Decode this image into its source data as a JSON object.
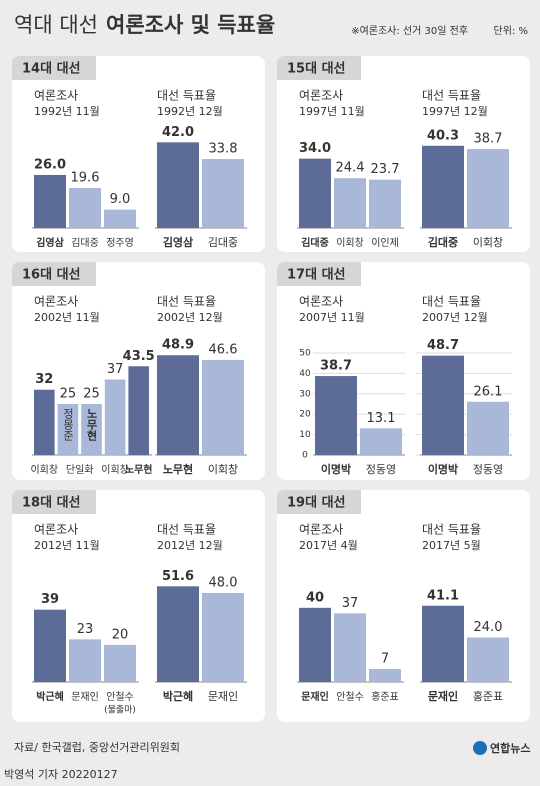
{
  "header": {
    "title_light": "역대 대선",
    "title_bold": "여론조사 및 득표율",
    "note": "※여론조사: 선거 30일 전후",
    "unit": "단위: %"
  },
  "panels": [
    {
      "label": "14대 대선"
    },
    {
      "label": "15대 대선"
    },
    {
      "label": "16대 대선"
    },
    {
      "label": "17대 대선"
    },
    {
      "label": "18대 대선"
    },
    {
      "label": "19대 대선"
    }
  ],
  "chart_data": [
    {
      "type": "bar",
      "title": "여론조사",
      "subtitle": "1992년 11월",
      "categories": [
        "김영삼",
        "김대중",
        "정주영"
      ],
      "values": [
        26,
        19.6,
        9
      ],
      "value_labels": [
        "26.0",
        "19.6",
        "9.0"
      ],
      "colors": [
        "#5d6c97",
        "#a9b8d9",
        "#a9b8d9"
      ],
      "bold": [
        true,
        false,
        false
      ],
      "ylim": [
        0,
        50
      ]
    },
    {
      "type": "bar",
      "title": "대선 득표율",
      "subtitle": "1992년 12월",
      "categories": [
        "김영삼",
        "김대중"
      ],
      "values": [
        42,
        33.8
      ],
      "value_labels": [
        "42.0",
        "33.8"
      ],
      "colors": [
        "#5d6c97",
        "#a9b8d9"
      ],
      "bold": [
        true,
        false
      ],
      "ylim": [
        0,
        50
      ]
    },
    {
      "type": "bar",
      "title": "여론조사",
      "subtitle": "1997년 11월",
      "categories": [
        "김대중",
        "이회창",
        "이인제"
      ],
      "values": [
        34,
        24.4,
        23.7
      ],
      "value_labels": [
        "34.0",
        "24.4",
        "23.7"
      ],
      "colors": [
        "#5d6c97",
        "#a9b8d9",
        "#a9b8d9"
      ],
      "bold": [
        true,
        false,
        false
      ],
      "ylim": [
        0,
        50
      ]
    },
    {
      "type": "bar",
      "title": "대선 득표율",
      "subtitle": "1997년 12월",
      "categories": [
        "김대중",
        "이회창"
      ],
      "values": [
        40.3,
        38.7
      ],
      "colors": [
        "#5d6c97",
        "#a9b8d9"
      ],
      "bold": [
        true,
        false
      ],
      "ylim": [
        0,
        50
      ]
    },
    {
      "type": "bar",
      "title": "여론조사",
      "subtitle": "2002년 11월",
      "categories": [
        "이회창",
        "정몽준",
        "노무현",
        "이회창",
        "노무현"
      ],
      "values": [
        32,
        25,
        25,
        37,
        43.5
      ],
      "colors": [
        "#5d6c97",
        "#a9b8d9",
        "#a9b8d9",
        "#a9b8d9",
        "#5d6c97"
      ],
      "bold": [
        false,
        false,
        true,
        false,
        true
      ],
      "in_bar": [
        false,
        true,
        true,
        false,
        false
      ],
      "group_label": "단일화",
      "ylim": [
        0,
        50
      ]
    },
    {
      "type": "bar",
      "title": "대선 득표율",
      "subtitle": "2002년 12월",
      "categories": [
        "노무현",
        "이회창"
      ],
      "values": [
        48.9,
        46.6
      ],
      "colors": [
        "#5d6c97",
        "#a9b8d9"
      ],
      "bold": [
        true,
        false
      ],
      "ylim": [
        0,
        50
      ]
    },
    {
      "type": "bar",
      "title": "여론조사",
      "subtitle": "2007년 11월",
      "categories": [
        "이명박",
        "정동영"
      ],
      "values": [
        38.7,
        13.1
      ],
      "colors": [
        "#5d6c97",
        "#a9b8d9"
      ],
      "bold": [
        true,
        false
      ],
      "ylim": [
        0,
        50
      ],
      "yticks": [
        0,
        10,
        20,
        30,
        40,
        50
      ],
      "grid": true,
      "show_tick_labels": true
    },
    {
      "type": "bar",
      "title": "대선 득표율",
      "subtitle": "2007년 12월",
      "categories": [
        "이명박",
        "정동영"
      ],
      "values": [
        48.7,
        26.1
      ],
      "colors": [
        "#5d6c97",
        "#a9b8d9"
      ],
      "bold": [
        true,
        false
      ],
      "ylim": [
        0,
        50
      ],
      "yticks": [
        0,
        10,
        20,
        30,
        40,
        50
      ],
      "grid": true,
      "show_tick_labels": false
    },
    {
      "type": "bar",
      "title": "여론조사",
      "subtitle": "2012년 11월",
      "categories": [
        "박근혜",
        "문재인",
        "안철수"
      ],
      "category_notes": [
        null,
        null,
        "(불출마)"
      ],
      "values": [
        39,
        23,
        20
      ],
      "colors": [
        "#5d6c97",
        "#a9b8d9",
        "#a9b8d9"
      ],
      "bold": [
        true,
        false,
        false
      ],
      "ylim": [
        0,
        55
      ]
    },
    {
      "type": "bar",
      "title": "대선 득표율",
      "subtitle": "2012년 12월",
      "categories": [
        "박근혜",
        "문재인"
      ],
      "values": [
        51.6,
        48
      ],
      "value_labels": [
        "51.6",
        "48.0"
      ],
      "colors": [
        "#5d6c97",
        "#a9b8d9"
      ],
      "bold": [
        true,
        false
      ],
      "ylim": [
        0,
        55
      ]
    },
    {
      "type": "bar",
      "title": "여론조사",
      "subtitle": "2017년 4월",
      "categories": [
        "문재인",
        "안철수",
        "홍준표"
      ],
      "values": [
        40,
        37,
        7
      ],
      "colors": [
        "#5d6c97",
        "#a9b8d9",
        "#a9b8d9"
      ],
      "bold": [
        true,
        false,
        false
      ],
      "ylim": [
        0,
        55
      ]
    },
    {
      "type": "bar",
      "title": "대선 득표율",
      "subtitle": "2017년 5월",
      "categories": [
        "문재인",
        "홍준표"
      ],
      "values": [
        41.1,
        24
      ],
      "value_labels": [
        "41.1",
        "24.0"
      ],
      "colors": [
        "#5d6c97",
        "#a9b8d9"
      ],
      "bold": [
        true,
        false
      ],
      "ylim": [
        0,
        55
      ]
    }
  ],
  "footer": {
    "source": "자료/ 한국갤럽, 중앙선거관리위원회",
    "logo": "연합뉴스",
    "credit": "박영석 기자 20220127"
  }
}
